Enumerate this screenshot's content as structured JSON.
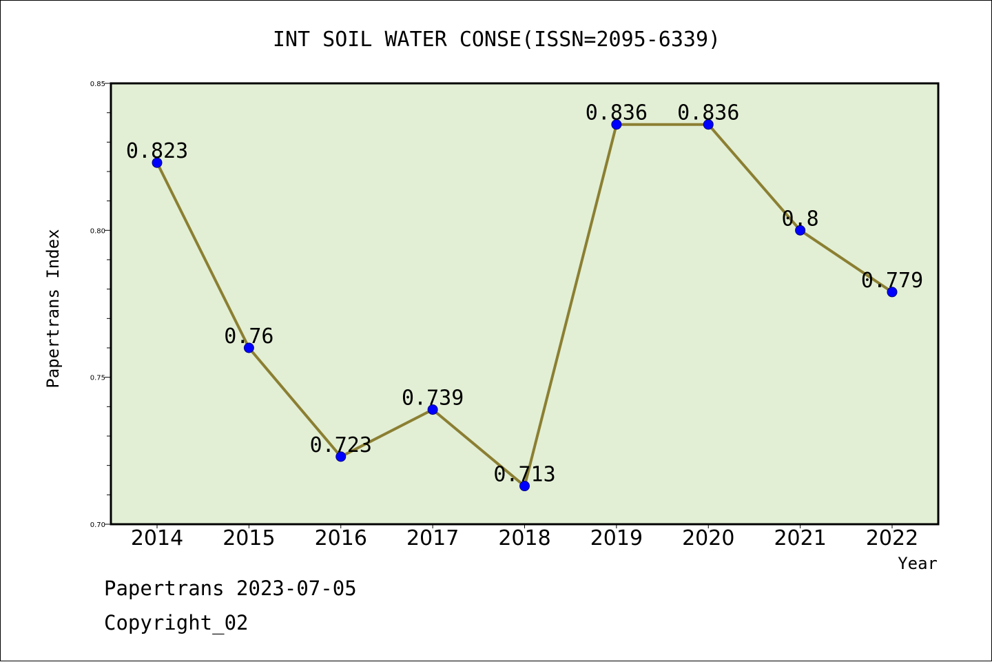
{
  "colors": {
    "plot_background": "#e2efd5",
    "line": "#8b7f32",
    "marker": "#0000ff",
    "marker_edge": "#00007f"
  },
  "footer": {
    "line1": "Papertrans 2023-07-05",
    "line2": "Copyright_02"
  },
  "chart_data": {
    "type": "line",
    "title": "INT SOIL WATER CONSE(ISSN=2095-6339)",
    "xlabel": "Year",
    "ylabel": "Papertrans Index",
    "categories": [
      "2014",
      "2015",
      "2016",
      "2017",
      "2018",
      "2019",
      "2020",
      "2021",
      "2022"
    ],
    "series": [
      {
        "values": [
          0.823,
          0.76,
          0.723,
          0.739,
          0.713,
          0.836,
          0.836,
          0.8,
          0.779
        ],
        "labels": [
          "0.823",
          "0.76",
          "0.723",
          "0.739",
          "0.713",
          "0.836",
          "0.836",
          "0.8",
          "0.779"
        ]
      }
    ],
    "ylim": [
      0.7,
      0.85
    ],
    "yticks": [
      "0.70",
      "0.75",
      "0.80",
      "0.85"
    ],
    "grid": false,
    "legend": "none"
  }
}
